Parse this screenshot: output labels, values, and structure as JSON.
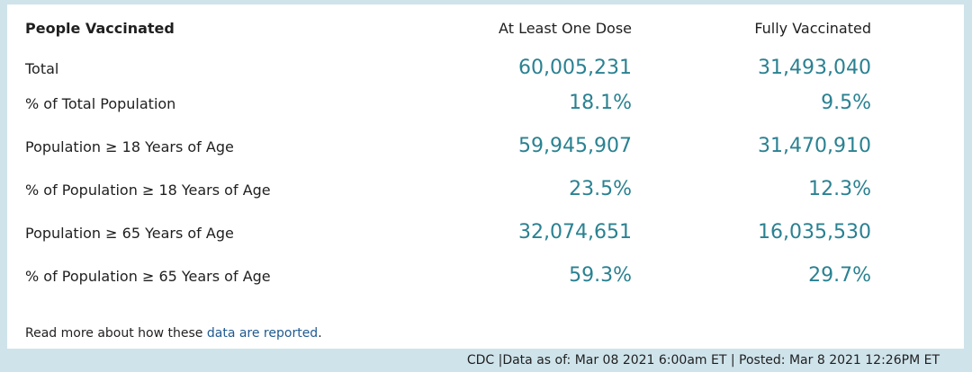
{
  "table": {
    "title": "People Vaccinated",
    "col1_header": "At Least One Dose",
    "col2_header": "Fully Vaccinated",
    "rows": [
      {
        "label": "Total",
        "col1": "60,005,231",
        "col2": "31,493,040"
      },
      {
        "label": "% of Total Population",
        "col1": "18.1%",
        "col2": "9.5%"
      },
      {
        "label": "Population ≥ 18 Years of Age",
        "col1": "59,945,907",
        "col2": "31,470,910"
      },
      {
        "label": "% of Population ≥ 18 Years of Age",
        "col1": "23.5%",
        "col2": "12.3%"
      },
      {
        "label": "Population ≥ 65 Years of Age",
        "col1": "32,074,651",
        "col2": "16,035,530"
      },
      {
        "label": "% of Population ≥ 65 Years of Age",
        "col1": "59.3%",
        "col2": "29.7%"
      }
    ]
  },
  "note": {
    "prefix": "Read more about how these ",
    "link": "data are reported",
    "suffix": "."
  },
  "footer": "CDC |Data as of: Mar 08 2021 6:00am ET | Posted: Mar 8 2021 12:26PM ET",
  "colors": {
    "value_teal": "#2a8191",
    "link_blue": "#1f5a8f",
    "background": "#cfe3ea"
  }
}
